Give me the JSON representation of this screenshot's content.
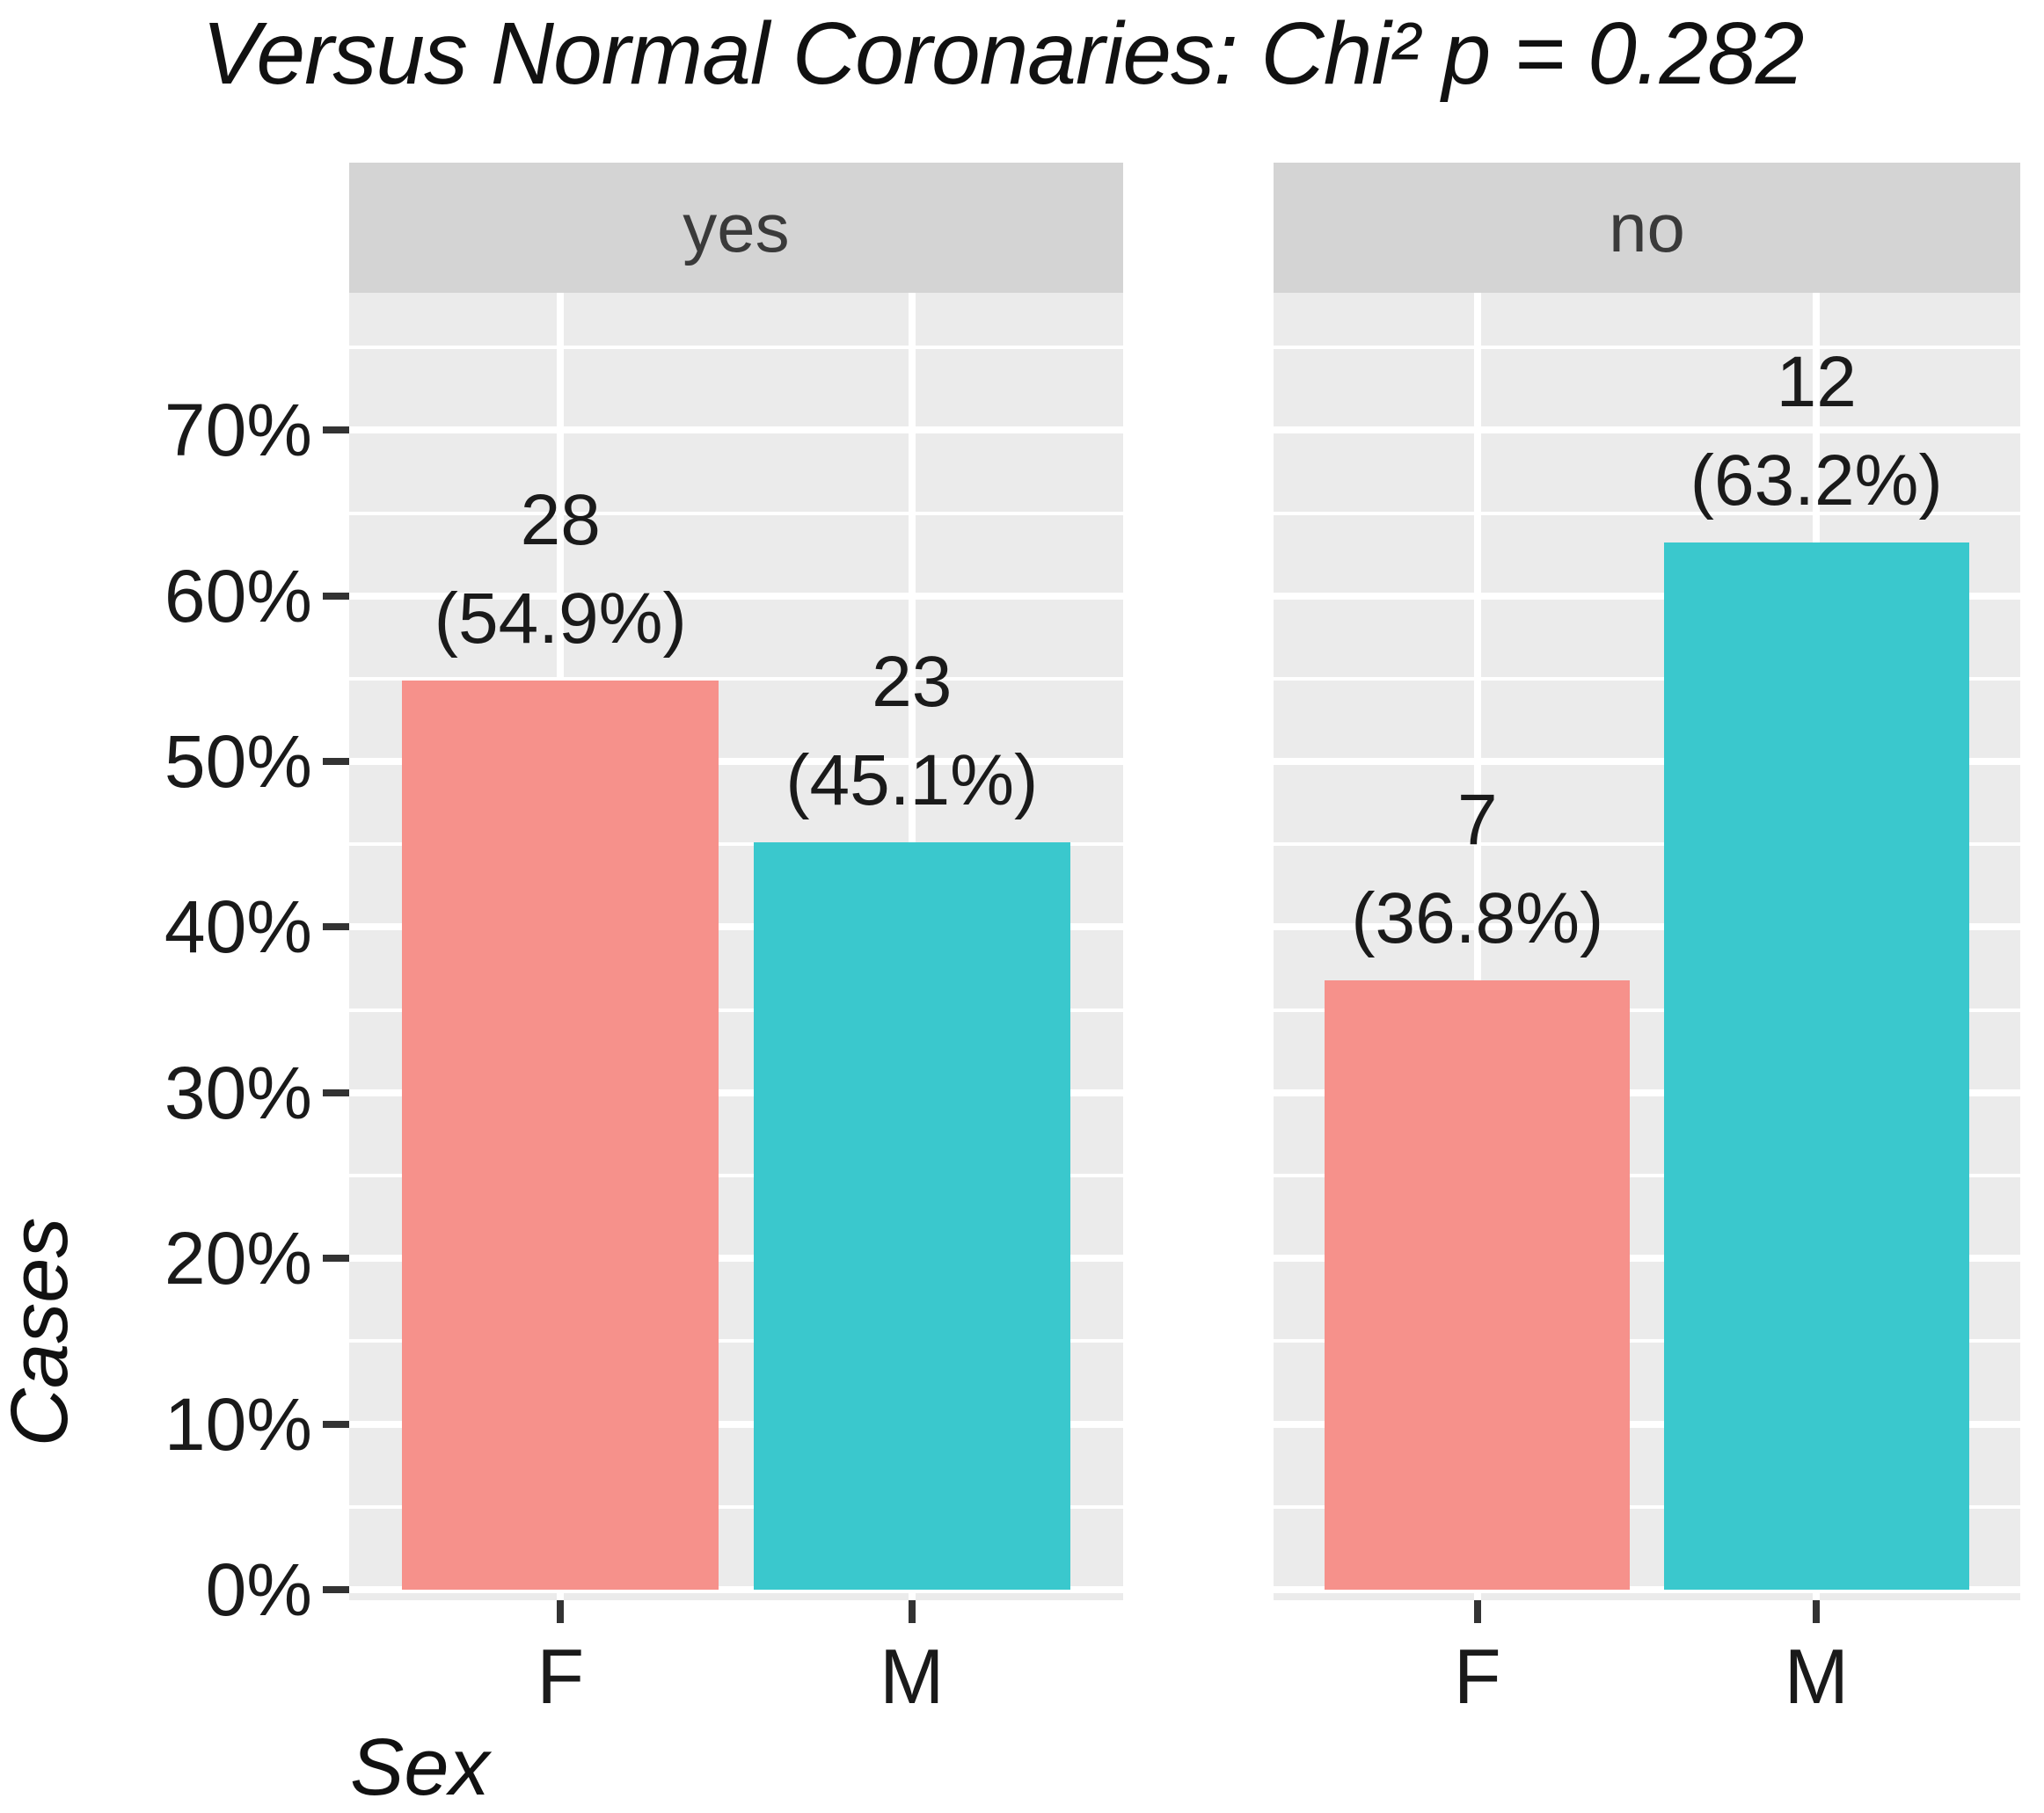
{
  "chart_data": {
    "type": "bar",
    "title": "Versus Normal Coronaries: Chi² p = 0.282",
    "xlabel": "Sex",
    "ylabel": "Cases",
    "categories": [
      "F",
      "M"
    ],
    "facets": [
      {
        "label": "yes",
        "bars": [
          {
            "category": "F",
            "count": 28,
            "pct": 54.9,
            "count_label": "28",
            "pct_label": "(54.9%)"
          },
          {
            "category": "M",
            "count": 23,
            "pct": 45.1,
            "count_label": "23",
            "pct_label": "(45.1%)"
          }
        ]
      },
      {
        "label": "no",
        "bars": [
          {
            "category": "F",
            "count": 7,
            "pct": 36.8,
            "count_label": "7",
            "pct_label": "(36.8%)"
          },
          {
            "category": "M",
            "count": 12,
            "pct": 63.2,
            "count_label": "12",
            "pct_label": "(63.2%)"
          }
        ]
      }
    ],
    "y_axis": {
      "unit": "%",
      "ticks": [
        0,
        10,
        20,
        30,
        40,
        50,
        60,
        70
      ],
      "tick_labels": [
        "0%",
        "10%",
        "20%",
        "30%",
        "40%",
        "50%",
        "60%",
        "70%"
      ],
      "minor_step": 5,
      "ylim": [
        0,
        78.3
      ],
      "grid": true
    },
    "legend": "none",
    "colors": {
      "F": "#F6918B",
      "M": "#3AC8CD"
    },
    "panel_bg": "#EBEBEB",
    "strip_bg": "#D4D4D4",
    "grid_color": "#FFFFFF"
  }
}
